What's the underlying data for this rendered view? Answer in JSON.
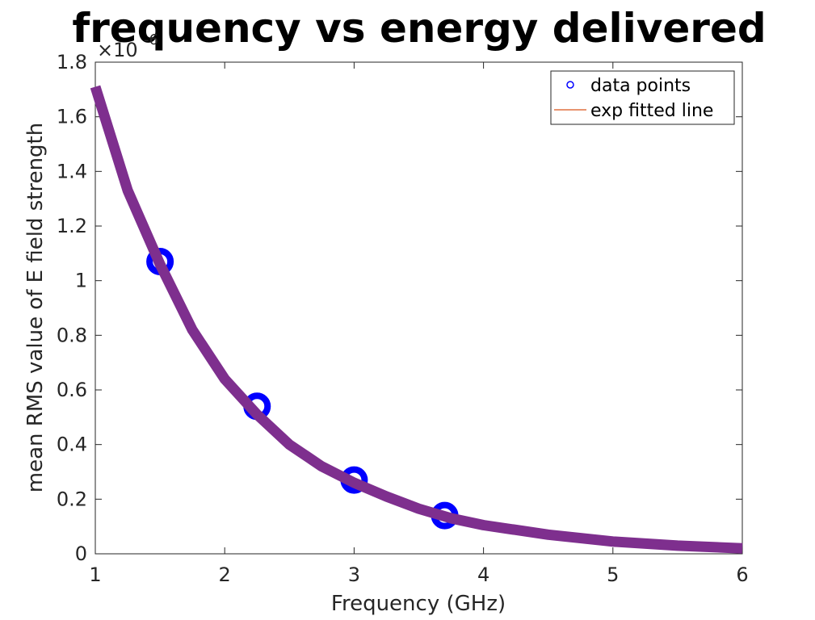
{
  "chart_data": {
    "type": "scatter",
    "title": "frequency vs energy delivered",
    "xlabel": "Frequency (GHz)",
    "ylabel": "mean RMS value of E field strength",
    "xlim": [
      1,
      6
    ],
    "ylim": [
      0,
      1.8
    ],
    "y_multiplier_label": "×10",
    "y_multiplier_exponent": "-6",
    "x_ticks": [
      "1",
      "2",
      "3",
      "4",
      "5",
      "6"
    ],
    "y_ticks": [
      "0",
      "0.2",
      "0.4",
      "0.6",
      "0.8",
      "1",
      "1.2",
      "1.4",
      "1.6",
      "1.8"
    ],
    "grid": false,
    "legend_position": "top-right",
    "series": [
      {
        "name": "data points",
        "kind": "marker",
        "color": "#0000ff",
        "x": [
          1.5,
          2.25,
          3.0,
          3.7
        ],
        "y": [
          1.07,
          0.54,
          0.27,
          0.14
        ]
      },
      {
        "name": "exp fitted line",
        "kind": "line",
        "color": "#7e2f8e",
        "legend_color": "#d95319",
        "x": [
          1.0,
          1.25,
          1.5,
          1.75,
          2.0,
          2.25,
          2.5,
          2.75,
          3.0,
          3.25,
          3.5,
          3.75,
          4.0,
          4.5,
          5.0,
          5.5,
          6.0
        ],
        "y": [
          1.71,
          1.33,
          1.06,
          0.82,
          0.64,
          0.51,
          0.4,
          0.32,
          0.26,
          0.21,
          0.165,
          0.13,
          0.105,
          0.07,
          0.045,
          0.03,
          0.02
        ]
      }
    ]
  }
}
